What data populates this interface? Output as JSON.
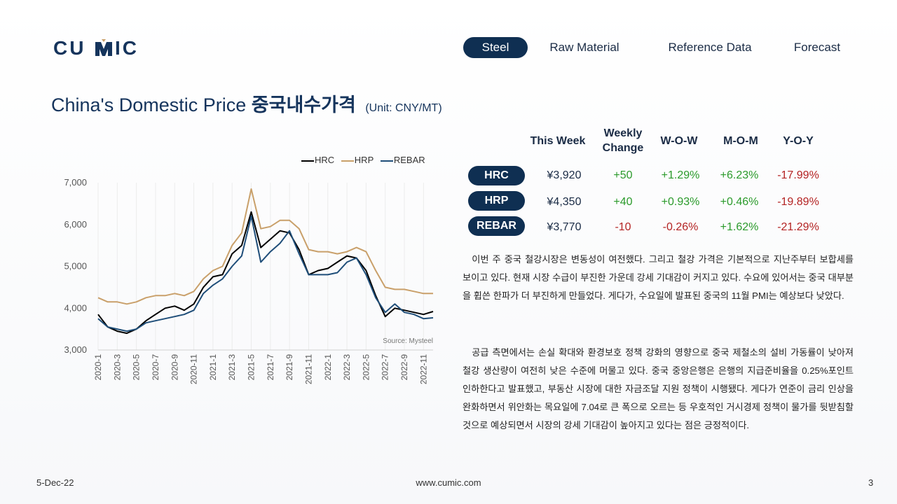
{
  "logo": {
    "text": "CUMIC"
  },
  "nav": {
    "items": [
      {
        "label": "Steel",
        "active": true
      },
      {
        "label": "Raw Material",
        "active": false
      },
      {
        "label": "Reference Data",
        "active": false
      },
      {
        "label": "Forecast",
        "active": false
      }
    ]
  },
  "title": {
    "en": "China's Domestic Price",
    "ko": "중국내수가격",
    "unit": "(Unit: CNY/MT)"
  },
  "table": {
    "headers": [
      "This Week",
      "Weekly Change",
      "W-O-W",
      "M-O-M",
      "Y-O-Y"
    ],
    "rows": [
      {
        "name": "HRC",
        "this_week": "¥3,920",
        "weekly_change": "+50",
        "wow": "+1.29%",
        "mom": "+6.23%",
        "yoy": "-17.99%"
      },
      {
        "name": "HRP",
        "this_week": "¥4,350",
        "weekly_change": "+40",
        "wow": "+0.93%",
        "mom": "+0.46%",
        "yoy": "-19.89%"
      },
      {
        "name": "REBAR",
        "this_week": "¥3,770",
        "weekly_change": "-10",
        "wow": "-0.26%",
        "mom": "+1.62%",
        "yoy": "-21.29%"
      }
    ],
    "colors": {
      "positive": "#2b9a2b",
      "negative": "#b42323",
      "pill": "#0f2f52"
    }
  },
  "paragraphs": [
    "이번 주 중국 철강시장은 변동성이 여전했다. 그리고 철강 가격은 기본적으로 지난주부터 보합세를 보이고 있다. 현재 시장 수급이 부진한 가운데 강세 기대감이 커지고 있다. 수요에 있어서는 중국 대부분을 휩쓴 한파가 더 부진하게 만들었다. 게다가, 수요일에 발표된 중국의 11월 PMI는 예상보다 낮았다.",
    "공급 측면에서는 손실 확대와 환경보호 정책 강화의 영향으로 중국 제철소의 설비 가동률이 낮아져 철강 생산량이 여전히 낮은 수준에 머물고 있다. 중국 중앙은행은 은행의 지급준비율을 0.25%포인트 인하한다고 발표했고, 부동산 시장에 대한 자금조달 지원 정책이 시행됐다. 게다가 연준이 금리 인상을 완화하면서 위안화는 목요일에 7.04로 큰 폭으로 오르는 등 우호적인 거시경제 정책이 물가를 뒷받침할 것으로 예상되면서 시장의 강세 기대감이 높아지고 있다는 점은 긍정적이다."
  ],
  "footer": {
    "date": "5-Dec-22",
    "url": "www.cumic.com",
    "page": "3"
  },
  "chart_data": {
    "type": "line",
    "source": "Source: Mysteel",
    "ylim": [
      3000,
      7000
    ],
    "yticks": [
      "3,000",
      "4,000",
      "5,000",
      "6,000",
      "7,000"
    ],
    "x": [
      "2020-1",
      "2020-2",
      "2020-3",
      "2020-4",
      "2020-5",
      "2020-6",
      "2020-7",
      "2020-8",
      "2020-9",
      "2020-10",
      "2020-11",
      "2020-12",
      "2021-1",
      "2021-2",
      "2021-3",
      "2021-4",
      "2021-5",
      "2021-6",
      "2021-7",
      "2021-8",
      "2021-9",
      "2021-10",
      "2021-11",
      "2021-12",
      "2022-1",
      "2022-2",
      "2022-3",
      "2022-4",
      "2022-5",
      "2022-6",
      "2022-7",
      "2022-8",
      "2022-9",
      "2022-10",
      "2022-11",
      "2022-12"
    ],
    "xticks": [
      "2020-1",
      "2020-3",
      "2020-5",
      "2020-7",
      "2020-9",
      "2020-11",
      "2021-1",
      "2021-3",
      "2021-5",
      "2021-7",
      "2021-9",
      "2021-11",
      "2022-1",
      "2022-3",
      "2022-5",
      "2022-7",
      "2022-9",
      "2022-11"
    ],
    "series": [
      {
        "name": "HRC",
        "color": "#000000",
        "values": [
          3850,
          3550,
          3450,
          3400,
          3500,
          3700,
          3850,
          4000,
          4050,
          3950,
          4100,
          4500,
          4750,
          4800,
          5300,
          5500,
          6300,
          5450,
          5650,
          5850,
          5800,
          5400,
          4800,
          4900,
          4950,
          5100,
          5250,
          5200,
          4900,
          4300,
          3800,
          4000,
          3950,
          3900,
          3850,
          3920
        ]
      },
      {
        "name": "HRP",
        "color": "#c9a06a",
        "values": [
          4250,
          4150,
          4150,
          4100,
          4150,
          4250,
          4300,
          4300,
          4350,
          4300,
          4400,
          4700,
          4900,
          5000,
          5500,
          5800,
          6850,
          5900,
          5950,
          6100,
          6100,
          5900,
          5400,
          5350,
          5350,
          5300,
          5350,
          5450,
          5350,
          4900,
          4500,
          4450,
          4450,
          4400,
          4350,
          4350
        ]
      },
      {
        "name": "REBAR",
        "color": "#1f4e79",
        "values": [
          3750,
          3550,
          3500,
          3450,
          3500,
          3650,
          3700,
          3750,
          3800,
          3850,
          3950,
          4350,
          4550,
          4700,
          5000,
          5250,
          6200,
          5100,
          5350,
          5550,
          5850,
          5300,
          4800,
          4800,
          4800,
          4850,
          5100,
          5200,
          4800,
          4250,
          3900,
          4100,
          3900,
          3850,
          3750,
          3770
        ]
      }
    ]
  }
}
